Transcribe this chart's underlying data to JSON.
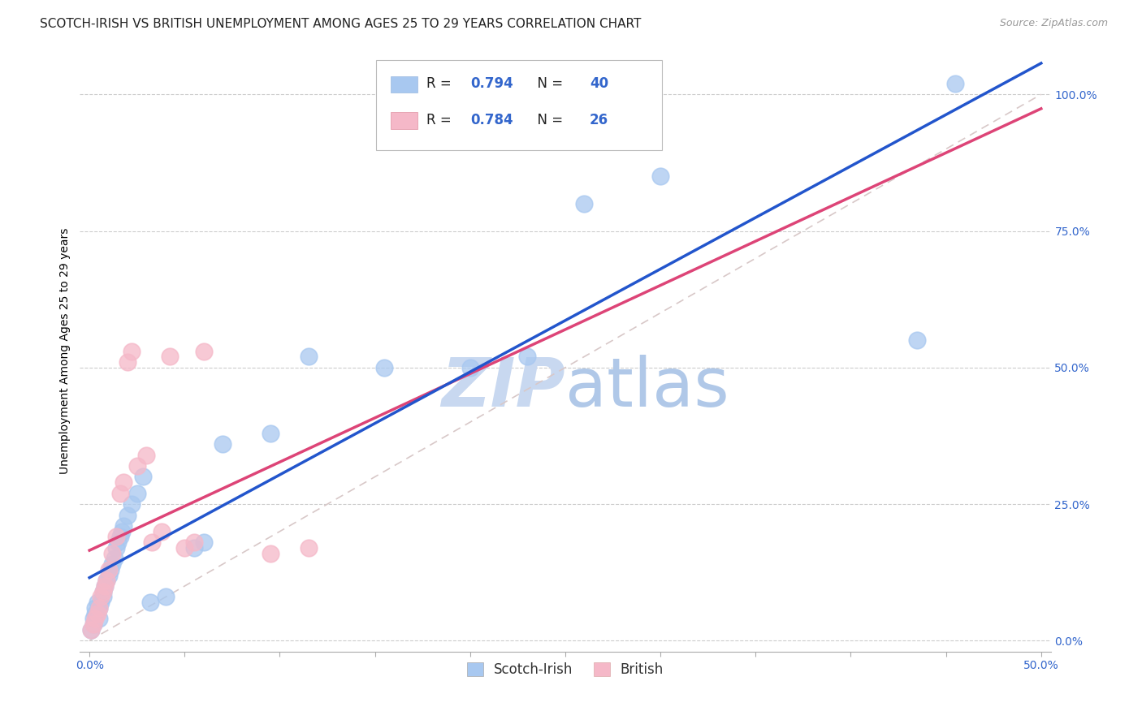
{
  "title": "SCOTCH-IRISH VS BRITISH UNEMPLOYMENT AMONG AGES 25 TO 29 YEARS CORRELATION CHART",
  "source": "Source: ZipAtlas.com",
  "ylabel": "Unemployment Among Ages 25 to 29 years",
  "xaxis_ticks": [
    0.0,
    0.05,
    0.1,
    0.15,
    0.2,
    0.25,
    0.3,
    0.35,
    0.4,
    0.45,
    0.5
  ],
  "yaxis_ticks": [
    0.0,
    0.25,
    0.5,
    0.75,
    1.0
  ],
  "xlim": [
    -0.005,
    0.505
  ],
  "ylim": [
    -0.02,
    1.08
  ],
  "scotch_irish_color": "#a8c8f0",
  "british_color": "#f5b8c8",
  "regression_scotch_irish_color": "#2255cc",
  "regression_british_color": "#dd4477",
  "reference_line_color": "#d8c8c8",
  "watermark_color": "#c8d8f0",
  "scotch_irish_x": [
    0.001,
    0.002,
    0.002,
    0.003,
    0.003,
    0.004,
    0.005,
    0.005,
    0.006,
    0.007,
    0.007,
    0.008,
    0.009,
    0.01,
    0.011,
    0.012,
    0.013,
    0.014,
    0.015,
    0.016,
    0.017,
    0.018,
    0.02,
    0.022,
    0.025,
    0.028,
    0.032,
    0.04,
    0.055,
    0.06,
    0.07,
    0.095,
    0.115,
    0.155,
    0.2,
    0.23,
    0.26,
    0.3,
    0.435,
    0.455
  ],
  "scotch_irish_y": [
    0.02,
    0.03,
    0.04,
    0.05,
    0.06,
    0.07,
    0.04,
    0.06,
    0.07,
    0.08,
    0.09,
    0.1,
    0.11,
    0.12,
    0.13,
    0.14,
    0.15,
    0.17,
    0.18,
    0.19,
    0.2,
    0.21,
    0.23,
    0.25,
    0.27,
    0.3,
    0.07,
    0.08,
    0.17,
    0.18,
    0.36,
    0.38,
    0.52,
    0.5,
    0.5,
    0.52,
    0.8,
    0.85,
    0.55,
    1.02
  ],
  "british_x": [
    0.001,
    0.002,
    0.003,
    0.004,
    0.005,
    0.006,
    0.007,
    0.008,
    0.009,
    0.01,
    0.012,
    0.014,
    0.016,
    0.018,
    0.02,
    0.022,
    0.025,
    0.03,
    0.033,
    0.038,
    0.042,
    0.05,
    0.055,
    0.06,
    0.095,
    0.115
  ],
  "british_y": [
    0.02,
    0.03,
    0.04,
    0.05,
    0.06,
    0.08,
    0.09,
    0.1,
    0.11,
    0.13,
    0.16,
    0.19,
    0.27,
    0.29,
    0.51,
    0.53,
    0.32,
    0.34,
    0.18,
    0.2,
    0.52,
    0.17,
    0.18,
    0.53,
    0.16,
    0.17
  ],
  "title_fontsize": 11,
  "source_fontsize": 9,
  "axis_label_fontsize": 10,
  "tick_fontsize": 10,
  "legend_fontsize": 12
}
